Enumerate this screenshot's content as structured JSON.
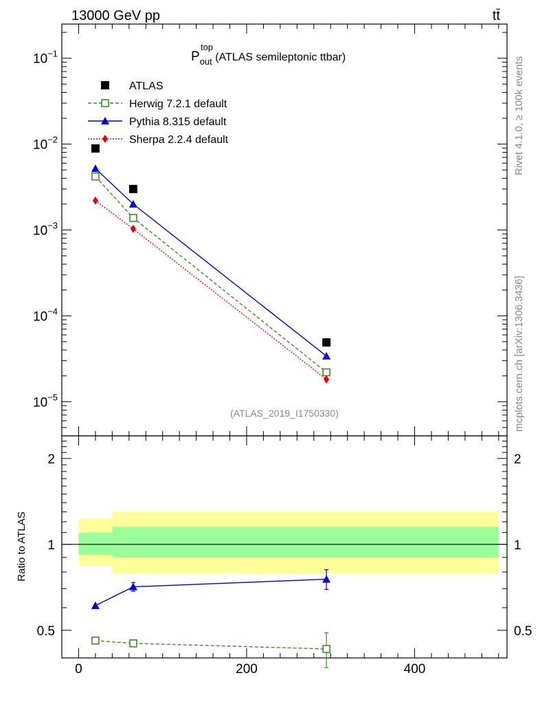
{
  "header": {
    "energy_label": "13000 GeV pp",
    "process_label": "tt̄"
  },
  "side_labels": {
    "rivet": "Rivet 4.1.0, ≥ 100k events",
    "mcplots": "mcplots.cern.ch [arXiv:1306.3436]"
  },
  "analysis_label": "(ATLAS_2019_I1750330)",
  "chart_data": [
    {
      "type": "line",
      "panel": "main",
      "title_main": "P",
      "title_sup": "top",
      "title_sub": "out",
      "title_rest": " (ATLAS semileptonic ttbar)",
      "yscale": "log",
      "ylim": [
        4e-06,
        0.25
      ],
      "xlim": [
        -20,
        510
      ],
      "ytick_labels": [
        {
          "base": "10",
          "exp": "−1",
          "value": 0.1
        },
        {
          "base": "10",
          "exp": "−2",
          "value": 0.01
        },
        {
          "base": "10",
          "exp": "−3",
          "value": 0.001
        },
        {
          "base": "10",
          "exp": "−4",
          "value": 0.0001
        },
        {
          "base": "10",
          "exp": "−5",
          "value": 1e-05
        }
      ],
      "legend_position": "top-left",
      "series": [
        {
          "name": "ATLAS",
          "color": "#000000",
          "marker": "square-filled",
          "linestyle": "none",
          "x": [
            20,
            65,
            295
          ],
          "y": [
            0.0089,
            0.003,
            4.9e-05
          ]
        },
        {
          "name": "Herwig 7.2.1 default",
          "color": "#3a8f1d",
          "marker": "square-open",
          "linestyle": "dashed",
          "x": [
            20,
            65,
            295
          ],
          "y": [
            0.0042,
            0.00138,
            2.2e-05
          ]
        },
        {
          "name": "Pythia 8.315 default",
          "color": "#0000dd",
          "marker": "triangle-filled",
          "linestyle": "solid",
          "x": [
            20,
            65,
            295
          ],
          "y": [
            0.0052,
            0.002,
            3.4e-05
          ]
        },
        {
          "name": "Sherpa 2.2.4 default",
          "color": "#ee0000",
          "marker": "diamond-filled",
          "linestyle": "dotted",
          "x": [
            20,
            65,
            295
          ],
          "y": [
            0.0022,
            0.00103,
            1.82e-05
          ]
        }
      ]
    },
    {
      "type": "line",
      "panel": "ratio",
      "ylabel": "Ratio to ATLAS",
      "yscale": "log",
      "ylim": [
        0.4,
        2.4
      ],
      "xlim": [
        -20,
        510
      ],
      "xtick_labels": [
        {
          "label": "0",
          "value": 0
        },
        {
          "label": "200",
          "value": 200
        },
        {
          "label": "400",
          "value": 400
        }
      ],
      "ytick_labels": [
        {
          "label": "2",
          "value": 2
        },
        {
          "label": "1",
          "value": 1
        },
        {
          "label": "0.5",
          "value": 0.5
        }
      ],
      "bands": [
        {
          "x_from": 0,
          "x_to": 40,
          "stat": [
            0.92,
            1.1
          ],
          "total": [
            0.84,
            1.23
          ]
        },
        {
          "x_from": 40,
          "x_to": 500,
          "stat": [
            0.9,
            1.15
          ],
          "total": [
            0.79,
            1.3
          ]
        }
      ],
      "band_colors": {
        "stat": "#99ff99",
        "total": "#ffff99"
      },
      "series": [
        {
          "name": "Pythia 8.315 default",
          "color": "#0000dd",
          "marker": "triangle-filled",
          "linestyle": "solid",
          "x": [
            20,
            65,
            295
          ],
          "y": [
            0.61,
            0.71,
            0.755
          ],
          "err": [
            0.0,
            0.025,
            0.06
          ]
        },
        {
          "name": "Herwig 7.2.1 default",
          "color": "#3a8f1d",
          "marker": "square-open",
          "linestyle": "dashed",
          "x": [
            20,
            65,
            295
          ],
          "y": [
            0.46,
            0.45,
            0.43
          ],
          "err": [
            0.0,
            0.0,
            0.06
          ]
        }
      ]
    }
  ]
}
